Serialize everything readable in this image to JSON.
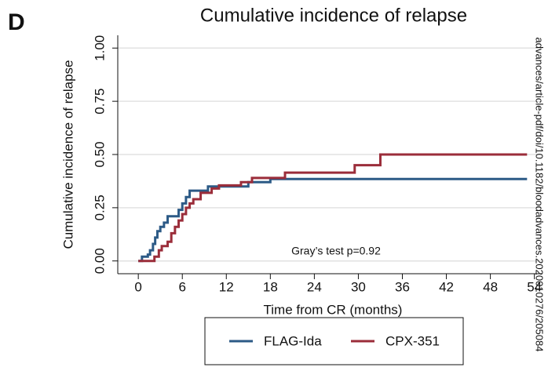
{
  "chart_data": {
    "type": "step",
    "panel_label": "D",
    "title": "Cumulative incidence of relapse",
    "x_label": "Time from CR (months)",
    "y_label": "Cumulative incidence of relapse",
    "annotation": "Gray’s test p=0.92",
    "watermark": "advances/article-pdf/doi/10.1182/bloodadvances.2020010276/205084",
    "xlim": [
      -2.8,
      55
    ],
    "ylim": [
      -0.06,
      1.06
    ],
    "xticks": [
      0,
      6,
      12,
      18,
      24,
      30,
      36,
      42,
      48,
      54
    ],
    "yticks": [
      {
        "value": 0,
        "label": "0.00"
      },
      {
        "value": 0.25,
        "label": "0.25"
      },
      {
        "value": 0.5,
        "label": "0.50"
      },
      {
        "value": 0.75,
        "label": "0.75"
      },
      {
        "value": 1,
        "label": "1.00"
      }
    ],
    "grid": true,
    "series": [
      {
        "name": "FLAG-Ida",
        "color": "#2c5a86",
        "x": [
          0,
          0.5,
          1.3,
          1.6,
          2,
          2.3,
          2.6,
          3,
          3.5,
          4,
          5.5,
          6,
          6.5,
          7,
          9.5,
          15,
          18,
          53
        ],
        "values": [
          0,
          0.02,
          0.03,
          0.05,
          0.08,
          0.11,
          0.14,
          0.16,
          0.18,
          0.21,
          0.24,
          0.27,
          0.3,
          0.33,
          0.35,
          0.37,
          0.385,
          0.385
        ]
      },
      {
        "name": "CPX-351",
        "color": "#9b2d3a",
        "x": [
          0,
          2.2,
          2.8,
          3.2,
          4,
          4.5,
          5,
          5.5,
          6,
          6.5,
          7,
          7.5,
          8.5,
          10,
          11,
          14,
          15.5,
          20,
          29.5,
          33,
          53
        ],
        "values": [
          0,
          0.02,
          0.05,
          0.07,
          0.09,
          0.13,
          0.16,
          0.19,
          0.22,
          0.25,
          0.27,
          0.29,
          0.32,
          0.34,
          0.355,
          0.37,
          0.39,
          0.415,
          0.45,
          0.5,
          0.5
        ]
      }
    ]
  }
}
